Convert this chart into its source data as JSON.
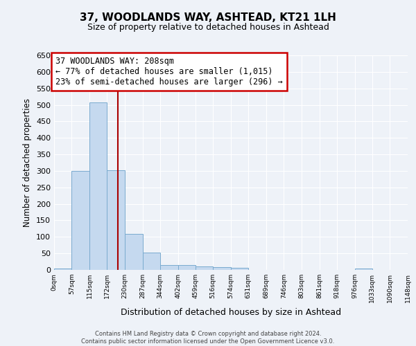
{
  "title": "37, WOODLANDS WAY, ASHTEAD, KT21 1LH",
  "subtitle": "Size of property relative to detached houses in Ashtead",
  "xlabel": "Distribution of detached houses by size in Ashtead",
  "ylabel": "Number of detached properties",
  "bin_edges": [
    0,
    57,
    115,
    172,
    230,
    287,
    344,
    402,
    459,
    516,
    574,
    631,
    689,
    746,
    803,
    861,
    918,
    976,
    1033,
    1090,
    1148
  ],
  "bin_labels": [
    "0sqm",
    "57sqm",
    "115sqm",
    "172sqm",
    "230sqm",
    "287sqm",
    "344sqm",
    "402sqm",
    "459sqm",
    "516sqm",
    "574sqm",
    "631sqm",
    "689sqm",
    "746sqm",
    "803sqm",
    "861sqm",
    "918sqm",
    "976sqm",
    "1033sqm",
    "1090sqm",
    "1148sqm"
  ],
  "counts": [
    5,
    300,
    507,
    302,
    108,
    53,
    14,
    14,
    10,
    8,
    7,
    0,
    0,
    0,
    0,
    0,
    0,
    5,
    0,
    0
  ],
  "bar_color": "#c5d9ef",
  "bar_edge_color": "#7aabcf",
  "vline_color": "#aa0000",
  "vline_x": 208,
  "ylim": [
    0,
    650
  ],
  "yticks": [
    0,
    50,
    100,
    150,
    200,
    250,
    300,
    350,
    400,
    450,
    500,
    550,
    600,
    650
  ],
  "annotation_line1": "37 WOODLANDS WAY: 208sqm",
  "annotation_line2": "← 77% of detached houses are smaller (1,015)",
  "annotation_line3": "23% of semi-detached houses are larger (296) →",
  "annotation_box_color": "#ffffff",
  "annotation_box_edge": "#cc0000",
  "bg_color": "#eef2f8",
  "grid_color": "#ffffff",
  "footer_line1": "Contains HM Land Registry data © Crown copyright and database right 2024.",
  "footer_line2": "Contains public sector information licensed under the Open Government Licence v3.0."
}
